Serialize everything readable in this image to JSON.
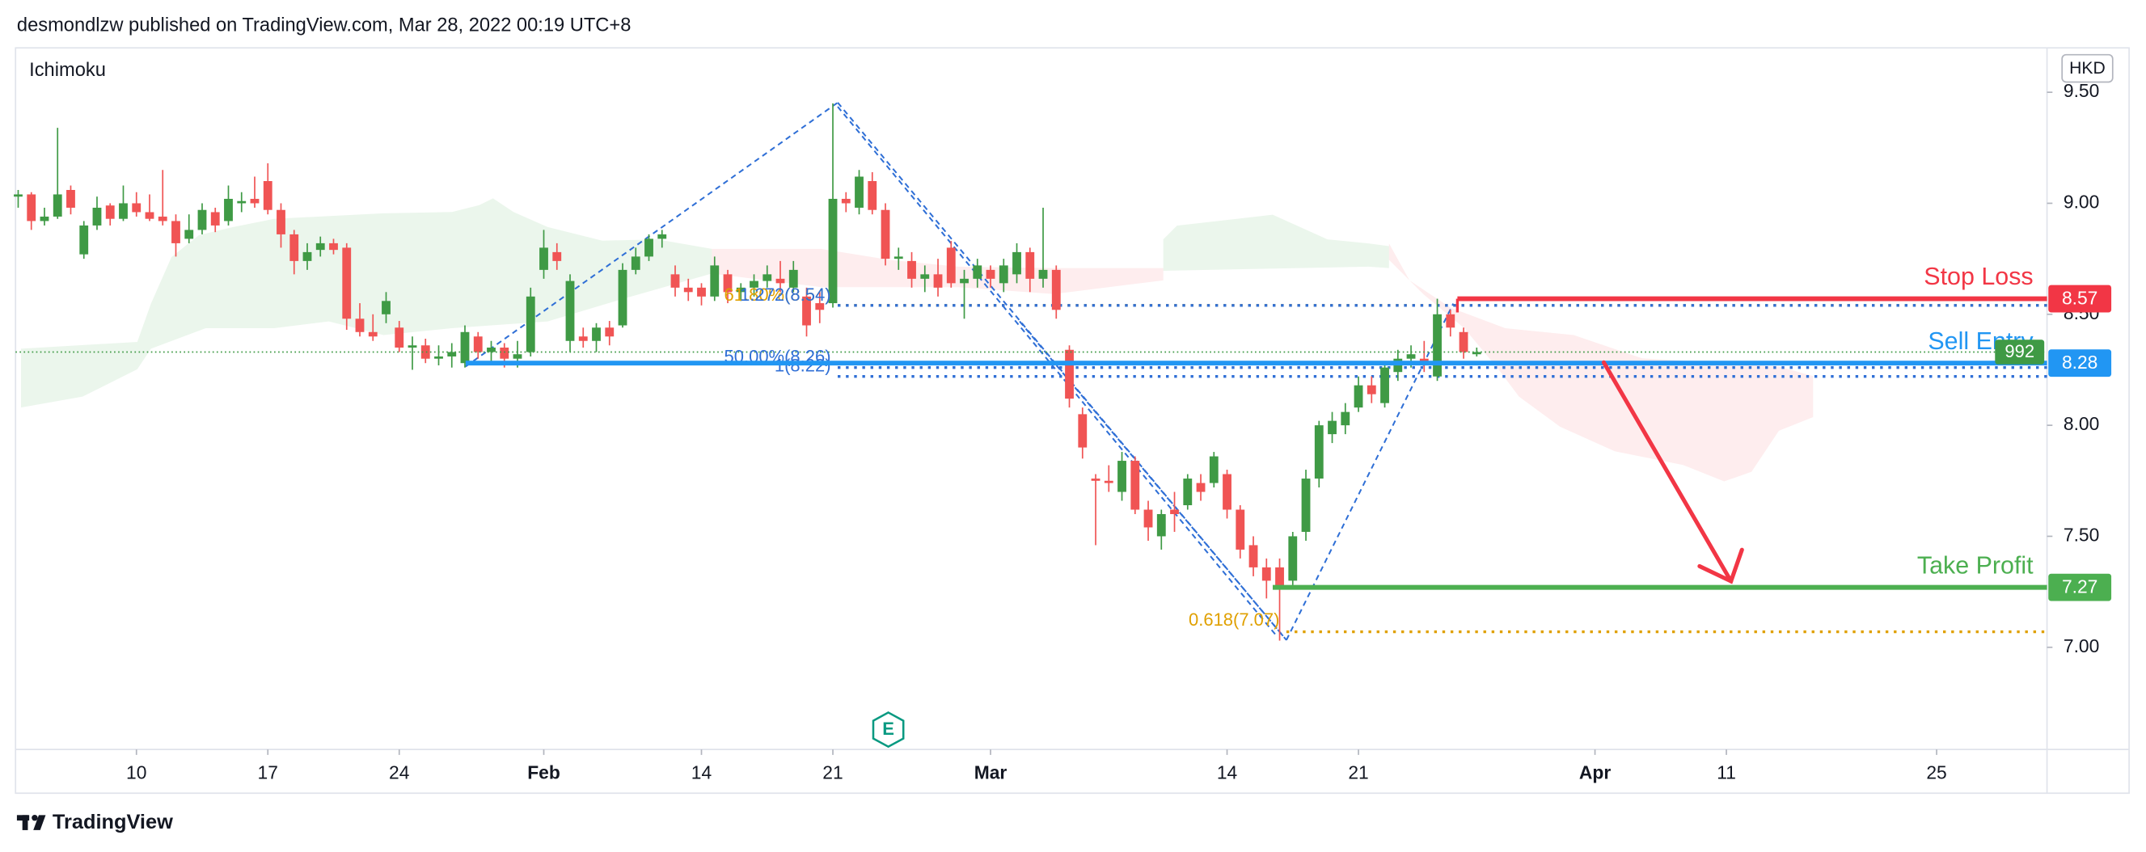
{
  "header": "desmondlzw published on TradingView.com, Mar 28, 2022 00:19 UTC+8",
  "footer_brand": "TradingView",
  "chart_data": {
    "type": "candlestick",
    "indicator": "Ichimoku",
    "currency": "HKD",
    "up_color": "#3f9a45",
    "down_color": "#f05454",
    "ohlc": [
      [
        9.03,
        9.06,
        8.98,
        9.04
      ],
      [
        9.04,
        9.05,
        8.88,
        8.92
      ],
      [
        8.92,
        8.98,
        8.9,
        8.94
      ],
      [
        8.94,
        9.34,
        8.93,
        9.04
      ],
      [
        9.06,
        9.08,
        8.95,
        8.98
      ],
      [
        8.77,
        8.92,
        8.75,
        8.9
      ],
      [
        8.9,
        9.03,
        8.88,
        8.98
      ],
      [
        8.99,
        9.0,
        8.9,
        8.93
      ],
      [
        8.93,
        9.08,
        8.92,
        9.0
      ],
      [
        9.0,
        9.05,
        8.94,
        8.96
      ],
      [
        8.96,
        9.04,
        8.92,
        8.93
      ],
      [
        8.94,
        9.15,
        8.9,
        8.92
      ],
      [
        8.92,
        8.95,
        8.76,
        8.82
      ],
      [
        8.84,
        8.95,
        8.82,
        8.88
      ],
      [
        8.88,
        9.0,
        8.86,
        8.97
      ],
      [
        8.96,
        8.98,
        8.87,
        8.9
      ],
      [
        8.92,
        9.08,
        8.9,
        9.02
      ],
      [
        9.0,
        9.05,
        8.96,
        9.01
      ],
      [
        9.02,
        9.12,
        8.98,
        9.0
      ],
      [
        9.1,
        9.18,
        8.95,
        8.97
      ],
      [
        8.97,
        9.0,
        8.8,
        8.86
      ],
      [
        8.86,
        8.88,
        8.68,
        8.74
      ],
      [
        8.74,
        8.82,
        8.7,
        8.78
      ],
      [
        8.79,
        8.85,
        8.76,
        8.82
      ],
      [
        8.82,
        8.84,
        8.77,
        8.79
      ],
      [
        8.8,
        8.82,
        8.43,
        8.48
      ],
      [
        8.48,
        8.55,
        8.4,
        8.42
      ],
      [
        8.42,
        8.5,
        8.38,
        8.4
      ],
      [
        8.5,
        8.6,
        8.46,
        8.56
      ],
      [
        8.44,
        8.47,
        8.33,
        8.35
      ],
      [
        8.35,
        8.4,
        8.25,
        8.36
      ],
      [
        8.36,
        8.39,
        8.28,
        8.3
      ],
      [
        8.3,
        8.36,
        8.27,
        8.31
      ],
      [
        8.31,
        8.37,
        8.26,
        8.33
      ],
      [
        8.28,
        8.45,
        8.26,
        8.42
      ],
      [
        8.4,
        8.42,
        8.3,
        8.33
      ],
      [
        8.33,
        8.38,
        8.28,
        8.35
      ],
      [
        8.35,
        8.37,
        8.26,
        8.3
      ],
      [
        8.3,
        8.38,
        8.26,
        8.32
      ],
      [
        8.33,
        8.62,
        8.31,
        8.58
      ],
      [
        8.7,
        8.88,
        8.66,
        8.8
      ],
      [
        8.78,
        8.82,
        8.7,
        8.74
      ],
      [
        8.38,
        8.68,
        8.33,
        8.65
      ],
      [
        8.4,
        8.44,
        8.35,
        8.38
      ],
      [
        8.38,
        8.46,
        8.33,
        8.44
      ],
      [
        8.44,
        8.47,
        8.36,
        8.4
      ],
      [
        8.45,
        8.73,
        8.44,
        8.7
      ],
      [
        8.7,
        8.8,
        8.68,
        8.76
      ],
      [
        8.76,
        8.86,
        8.74,
        8.84
      ],
      [
        8.84,
        8.88,
        8.8,
        8.86
      ],
      [
        8.68,
        8.72,
        8.58,
        8.62
      ],
      [
        8.62,
        8.66,
        8.56,
        8.6
      ],
      [
        8.62,
        8.64,
        8.54,
        8.58
      ],
      [
        8.58,
        8.76,
        8.56,
        8.72
      ],
      [
        8.68,
        8.7,
        8.55,
        8.6
      ],
      [
        8.6,
        8.64,
        8.56,
        8.62
      ],
      [
        8.62,
        8.68,
        8.58,
        8.65
      ],
      [
        8.65,
        8.72,
        8.62,
        8.68
      ],
      [
        8.66,
        8.74,
        8.6,
        8.64
      ],
      [
        8.62,
        8.74,
        8.6,
        8.7
      ],
      [
        8.58,
        8.62,
        8.4,
        8.45
      ],
      [
        8.55,
        8.6,
        8.46,
        8.52
      ],
      [
        8.55,
        9.45,
        8.53,
        9.02
      ],
      [
        9.02,
        9.05,
        8.96,
        9.0
      ],
      [
        8.98,
        9.15,
        8.95,
        9.12
      ],
      [
        9.1,
        9.14,
        8.95,
        8.97
      ],
      [
        8.97,
        9.0,
        8.72,
        8.75
      ],
      [
        8.75,
        8.8,
        8.7,
        8.76
      ],
      [
        8.74,
        8.78,
        8.62,
        8.66
      ],
      [
        8.66,
        8.72,
        8.6,
        8.68
      ],
      [
        8.68,
        8.75,
        8.58,
        8.62
      ],
      [
        8.8,
        8.83,
        8.62,
        8.64
      ],
      [
        8.64,
        8.7,
        8.48,
        8.66
      ],
      [
        8.66,
        8.75,
        8.62,
        8.72
      ],
      [
        8.7,
        8.72,
        8.62,
        8.66
      ],
      [
        8.64,
        8.75,
        8.6,
        8.72
      ],
      [
        8.68,
        8.82,
        8.64,
        8.78
      ],
      [
        8.78,
        8.8,
        8.6,
        8.66
      ],
      [
        8.66,
        8.98,
        8.62,
        8.7
      ],
      [
        8.7,
        8.72,
        8.48,
        8.52
      ],
      [
        8.34,
        8.36,
        8.08,
        8.12
      ],
      [
        8.05,
        8.08,
        7.85,
        7.9
      ],
      [
        7.76,
        7.78,
        7.46,
        7.75
      ],
      [
        7.75,
        7.82,
        7.7,
        7.74
      ],
      [
        7.7,
        7.88,
        7.66,
        7.84
      ],
      [
        7.84,
        7.86,
        7.6,
        7.62
      ],
      [
        7.62,
        7.66,
        7.48,
        7.54
      ],
      [
        7.5,
        7.62,
        7.44,
        7.6
      ],
      [
        7.62,
        7.7,
        7.52,
        7.6
      ],
      [
        7.64,
        7.78,
        7.62,
        7.76
      ],
      [
        7.74,
        7.78,
        7.66,
        7.7
      ],
      [
        7.74,
        7.88,
        7.72,
        7.86
      ],
      [
        7.78,
        7.8,
        7.58,
        7.62
      ],
      [
        7.62,
        7.64,
        7.4,
        7.44
      ],
      [
        7.46,
        7.5,
        7.32,
        7.36
      ],
      [
        7.36,
        7.4,
        7.22,
        7.3
      ],
      [
        7.36,
        7.4,
        7.03,
        7.26
      ],
      [
        7.3,
        7.52,
        7.28,
        7.5
      ],
      [
        7.52,
        7.8,
        7.48,
        7.76
      ],
      [
        7.76,
        8.02,
        7.72,
        8.0
      ],
      [
        7.96,
        8.06,
        7.92,
        8.02
      ],
      [
        8.0,
        8.1,
        7.96,
        8.06
      ],
      [
        8.08,
        8.22,
        8.06,
        8.18
      ],
      [
        8.18,
        8.22,
        8.1,
        8.14
      ],
      [
        8.1,
        8.28,
        8.08,
        8.26
      ],
      [
        8.24,
        8.34,
        8.2,
        8.3
      ],
      [
        8.3,
        8.36,
        8.26,
        8.32
      ],
      [
        8.3,
        8.38,
        8.24,
        8.28
      ],
      [
        8.22,
        8.57,
        8.2,
        8.5
      ],
      [
        8.5,
        8.52,
        8.4,
        8.44
      ],
      [
        8.42,
        8.44,
        8.3,
        8.33
      ],
      [
        8.32,
        8.35,
        8.31,
        8.33
      ]
    ],
    "xlim": [
      -0.2,
      154.4
    ],
    "xticks": [
      {
        "value": 9,
        "label": "10"
      },
      {
        "value": 19,
        "label": "17"
      },
      {
        "value": 29,
        "label": "24"
      },
      {
        "value": 40,
        "label": "Feb"
      },
      {
        "value": 52,
        "label": "14"
      },
      {
        "value": 62,
        "label": "21"
      },
      {
        "value": 74,
        "label": "Mar"
      },
      {
        "value": 92,
        "label": "14"
      },
      {
        "value": 102,
        "label": "21"
      },
      {
        "value": 120,
        "label": "Apr"
      },
      {
        "value": 130,
        "label": "11"
      },
      {
        "value": 146,
        "label": "25"
      }
    ],
    "ylim": [
      6.54,
      9.7
    ],
    "yticks": [
      {
        "value": 9.5,
        "label": "9.50"
      },
      {
        "value": 9,
        "label": "9.00"
      },
      {
        "value": 8.5,
        "label": "8.50"
      },
      {
        "value": 8,
        "label": "8.00"
      },
      {
        "value": 7.5,
        "label": "7.50"
      },
      {
        "value": 7,
        "label": "7.00"
      }
    ],
    "levels": [
      {
        "name": "Stop Loss",
        "value": 8.57,
        "label": "8.57",
        "color": "#f23645"
      },
      {
        "name": "Sell Entry",
        "value": 8.28,
        "label": "8.28",
        "color": "#2196f3"
      },
      {
        "name": "Take Profit",
        "value": 7.27,
        "label": "7.27",
        "color": "#4caf50"
      }
    ],
    "fib_labels": [
      {
        "label": "61.80%(8.54)",
        "value": 8.54,
        "color": "#e0a000"
      },
      {
        "label": "1.272(8.54)",
        "value": 8.54,
        "color": "#2f6fd6"
      },
      {
        "label": "50.00%(8.26)",
        "value": 8.26,
        "color": "#2f6fd6"
      },
      {
        "label": "1(8.22)",
        "value": 8.22,
        "color": "#2f6fd6"
      },
      {
        "label": "0.618(7.07)",
        "value": 7.07,
        "color": "#e0a000"
      }
    ],
    "countdown": "992",
    "earnings": "E"
  }
}
